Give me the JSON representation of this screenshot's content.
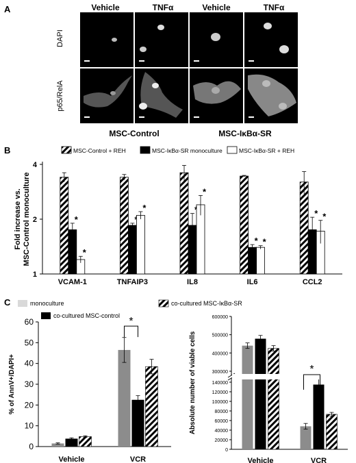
{
  "panel_a": {
    "letter": "A",
    "column_headers": [
      "Vehicle",
      "TNFα",
      "Vehicle",
      "TNFα"
    ],
    "row_labels": [
      "DAPI",
      "p65/RelA"
    ],
    "group_labels": [
      "MSC-Control",
      "MSC-IκBα-SR"
    ]
  },
  "panel_b_letter": "B",
  "panel_c_letter": "C",
  "colors": {
    "black": "#000000",
    "gray": "#8c8c8c",
    "light_gray": "#d9d9d9",
    "white": "#ffffff"
  },
  "chart_data": [
    {
      "type": "bar",
      "panel": "B",
      "ylabel": "Fold increase vs. MSC-Control monoculture",
      "ylim": [
        1,
        4
      ],
      "yticks": [
        1,
        2,
        4
      ],
      "scale": "log",
      "categories": [
        "VCAM-1",
        "TNFAIP3",
        "IL8",
        "IL6",
        "CCL2"
      ],
      "series": [
        {
          "name": "MSC-Control + REH",
          "pattern": "hatched",
          "values": [
            3.4,
            3.4,
            3.6,
            3.45,
            3.2
          ],
          "errors": [
            0.2,
            0.12,
            0.35,
            0.03,
            0.45
          ]
        },
        {
          "name": "MSC-IκBα-SR monoculture",
          "pattern": "solid-black",
          "values": [
            1.75,
            1.85,
            1.85,
            1.4,
            1.75
          ],
          "errors": [
            0.15,
            0.05,
            0.3,
            0.05,
            0.3
          ]
        },
        {
          "name": "MSC-IκBα-SR + REH",
          "pattern": "white",
          "values": [
            1.2,
            2.1,
            2.4,
            1.4,
            1.72
          ],
          "errors": [
            0.05,
            0.1,
            0.3,
            0.03,
            0.25
          ]
        }
      ],
      "significance_marks": [
        "*",
        "*",
        "*",
        "*",
        "*",
        "*",
        "*",
        "*",
        "*",
        "*"
      ]
    },
    {
      "type": "bar",
      "panel": "C-left",
      "ylabel": "% of AnnV+/DAPI+",
      "ylim": [
        0,
        60
      ],
      "yticks": [
        0,
        10,
        20,
        30,
        40,
        50,
        60
      ],
      "categories": [
        "Vehicle",
        "VCR"
      ],
      "series": [
        {
          "name": "monoculture",
          "pattern": "gray",
          "values": [
            1.5,
            46.5
          ],
          "errors": [
            0.3,
            6.0
          ]
        },
        {
          "name": "co-cultured MSC-control",
          "pattern": "solid-black",
          "values": [
            3.8,
            22.5
          ],
          "errors": [
            0.4,
            2.0
          ]
        },
        {
          "name": "co-cultured MSC-IκBα-SR",
          "pattern": "hatched",
          "values": [
            4.8,
            38.5
          ],
          "errors": [
            0.4,
            3.5
          ]
        }
      ],
      "significance_marks": [
        "*"
      ]
    },
    {
      "type": "bar",
      "panel": "C-right",
      "ylabel": "Absolute number of viable cells",
      "broken_axis": true,
      "yticks_lower": [
        0,
        20000,
        40000,
        60000,
        80000,
        100000,
        120000,
        140000
      ],
      "yticks_upper": [
        300000,
        400000,
        500000,
        600000
      ],
      "tick_labels_lower": [
        "0",
        "20000",
        "40000",
        "60000",
        "80000",
        "100000",
        "120000",
        "140000"
      ],
      "tick_labels_upper": [
        "300000",
        "400000",
        "500000",
        "600000"
      ],
      "categories": [
        "Vehicle",
        "VCR"
      ],
      "series": [
        {
          "name": "monoculture",
          "pattern": "gray",
          "values": [
            440000,
            48000
          ],
          "errors": [
            15000,
            6000
          ]
        },
        {
          "name": "co-cultured MSC-control",
          "pattern": "solid-black",
          "values": [
            478000,
            135000
          ],
          "errors": [
            18000,
            12000
          ]
        },
        {
          "name": "co-cultured MSC-IκBα-SR",
          "pattern": "hatched",
          "values": [
            425000,
            73000
          ],
          "errors": [
            15000,
            4000
          ]
        }
      ],
      "significance_marks": [
        "*"
      ]
    }
  ]
}
